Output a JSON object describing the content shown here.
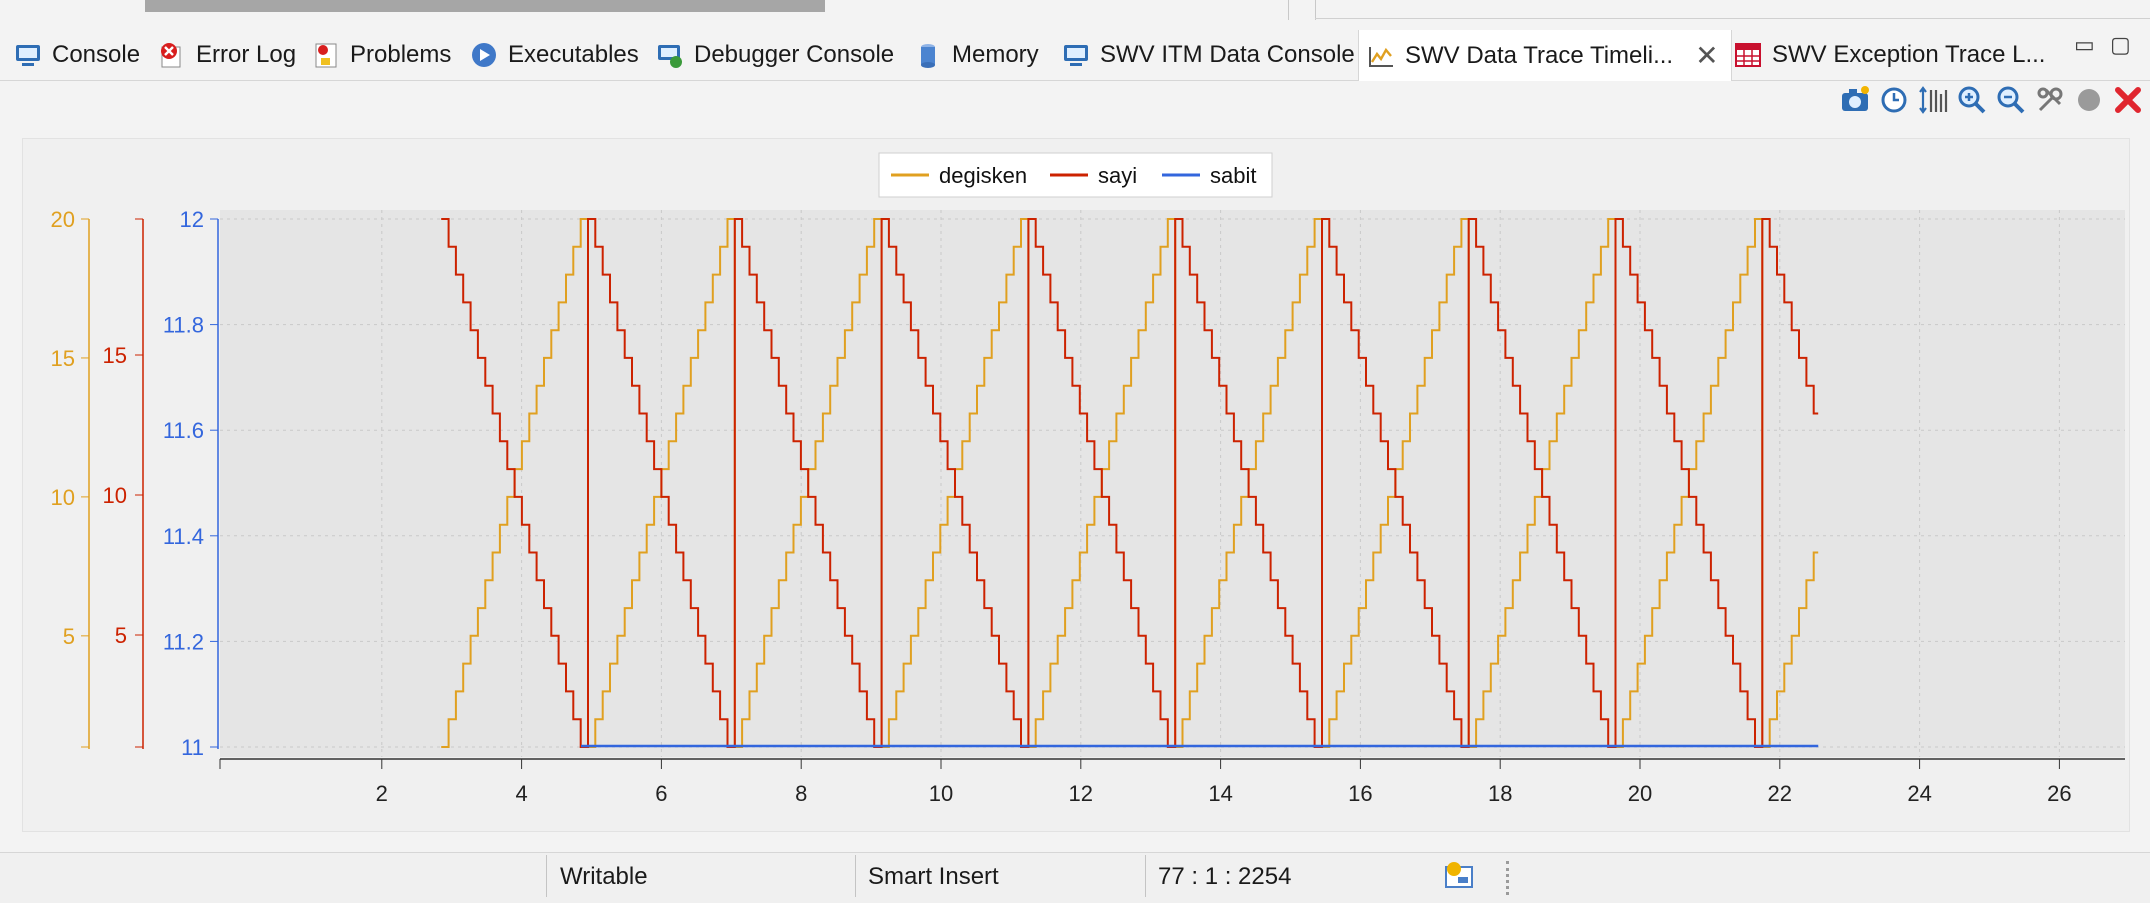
{
  "tabs": [
    {
      "label": "Console",
      "icon": "console-icon"
    },
    {
      "label": "Error Log",
      "icon": "error-log-icon"
    },
    {
      "label": "Problems",
      "icon": "problems-icon"
    },
    {
      "label": "Executables",
      "icon": "executables-icon"
    },
    {
      "label": "Debugger Console",
      "icon": "debugger-console-icon"
    },
    {
      "label": "Memory",
      "icon": "memory-icon"
    },
    {
      "label": "SWV ITM Data Console",
      "icon": "itm-console-icon"
    },
    {
      "label": "SWV Data Trace Timeli...",
      "icon": "timeline-icon",
      "active": true
    },
    {
      "label": "SWV Exception Trace L...",
      "icon": "exception-table-icon"
    }
  ],
  "window_controls": {
    "minimize": "▭",
    "maximize": "▢"
  },
  "toolbar": [
    "camera-icon",
    "clock-icon",
    "scale-icon",
    "zoom-in-icon",
    "zoom-out-icon",
    "settings-icon",
    "record-icon",
    "stop-icon"
  ],
  "status": {
    "writable": "Writable",
    "insert_mode": "Smart Insert",
    "position": "77 : 1 : 2254"
  },
  "colors": {
    "degisken": "#e0a020",
    "sayi": "#cc2200",
    "sabit": "#3366dd"
  },
  "chart_data": {
    "type": "line",
    "step": true,
    "legend_position": "top-center",
    "series": [
      {
        "name": "degisken",
        "axis": "y1",
        "period": 2.1,
        "start_x": 2.85,
        "end_x": 22.55,
        "min": 1,
        "max": 20
      },
      {
        "name": "sayi",
        "axis": "y2",
        "period": 2.1,
        "start_x": 2.85,
        "end_x": 22.55,
        "min": 1,
        "max": 20
      },
      {
        "name": "sabit",
        "axis": "y3",
        "start_x": 4.85,
        "end_x": 22.55,
        "value": 11
      }
    ],
    "x_axis": {
      "range": [
        0,
        27
      ],
      "ticks": [
        "2",
        "4",
        "6",
        "8",
        "10",
        "12",
        "14",
        "16",
        "18",
        "20",
        "22",
        "24",
        "26"
      ]
    },
    "y_axes": [
      {
        "id": "y1",
        "series": "degisken",
        "range": [
          0,
          20
        ],
        "ticks": [
          "20",
          "15",
          "10",
          "5"
        ]
      },
      {
        "id": "y2",
        "series": "sayi",
        "range": [
          0,
          20
        ],
        "ticks": [
          "15",
          "10",
          "5"
        ]
      },
      {
        "id": "y3",
        "series": "sabit",
        "range": [
          11,
          12
        ],
        "ticks": [
          "12",
          "11.8",
          "11.6",
          "11.4",
          "11.2",
          "11"
        ]
      }
    ],
    "grid": true
  }
}
